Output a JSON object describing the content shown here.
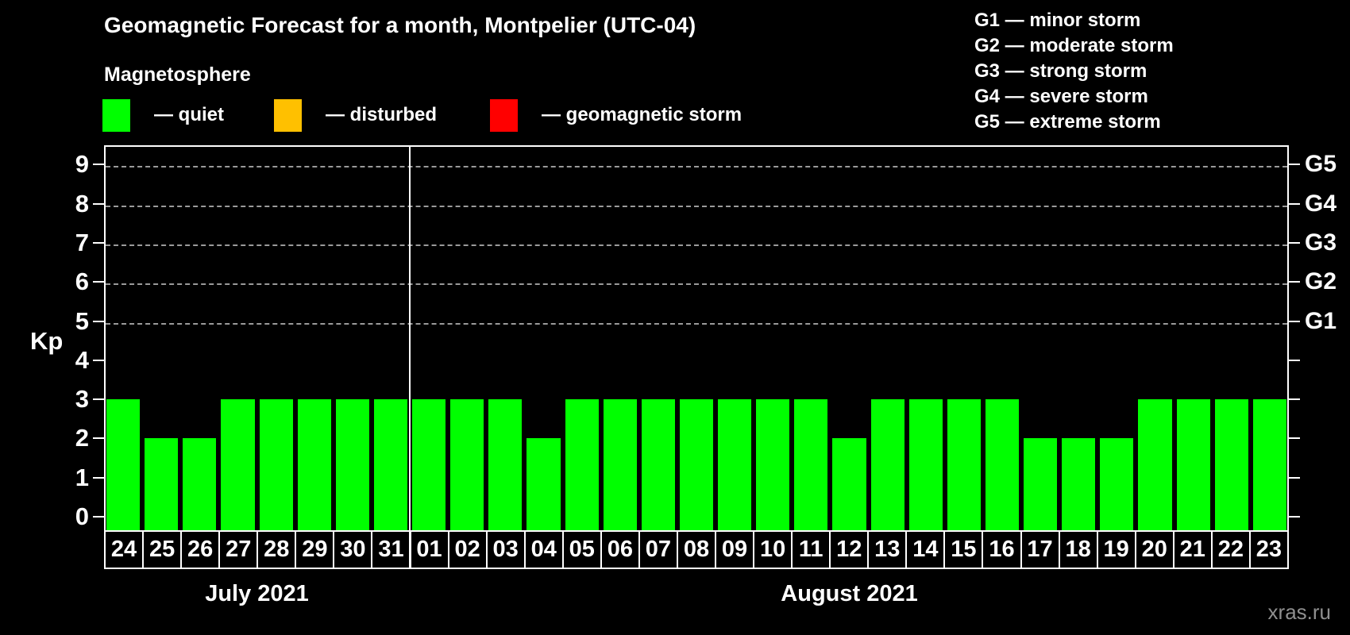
{
  "title": "Geomagnetic Forecast for a month, Montpelier (UTC-04)",
  "watermark": "xras.ru",
  "magnetosphere_legend": {
    "title": "Magnetosphere",
    "items": [
      {
        "name": "quiet",
        "label": "— quiet",
        "color": "#00ff00"
      },
      {
        "name": "disturbed",
        "label": "— disturbed",
        "color": "#ffc000"
      },
      {
        "name": "storm",
        "label": "— geomagnetic storm",
        "color": "#ff0000"
      }
    ]
  },
  "gscale_legend": [
    "G1 — minor storm",
    "G2 — moderate storm",
    "G3 — strong storm",
    "G4 — severe storm",
    "G5 — extreme storm"
  ],
  "chart_data": {
    "type": "bar",
    "ylabel": "Kp",
    "ylim": [
      0,
      9.8
    ],
    "yticks": [
      0,
      1,
      2,
      3,
      4,
      5,
      6,
      7,
      8,
      9
    ],
    "gridlines_at_kp": [
      5,
      6,
      7,
      8,
      9
    ],
    "grid_style": "dashed",
    "legend_position": "top",
    "right_axis": [
      {
        "label": "G1",
        "kp": 5
      },
      {
        "label": "G2",
        "kp": 6
      },
      {
        "label": "G3",
        "kp": 7
      },
      {
        "label": "G4",
        "kp": 8
      },
      {
        "label": "G5",
        "kp": 9
      }
    ],
    "status_colors": {
      "quiet": "#00ff00",
      "disturbed": "#ffc000",
      "storm": "#ff0000"
    },
    "months": [
      {
        "label": "July 2021",
        "days": [
          {
            "day": "24",
            "kp": 3,
            "status": "quiet"
          },
          {
            "day": "25",
            "kp": 2,
            "status": "quiet"
          },
          {
            "day": "26",
            "kp": 2,
            "status": "quiet"
          },
          {
            "day": "27",
            "kp": 3,
            "status": "quiet"
          },
          {
            "day": "28",
            "kp": 3,
            "status": "quiet"
          },
          {
            "day": "29",
            "kp": 3,
            "status": "quiet"
          },
          {
            "day": "30",
            "kp": 3,
            "status": "quiet"
          },
          {
            "day": "31",
            "kp": 3,
            "status": "quiet"
          }
        ]
      },
      {
        "label": "August 2021",
        "days": [
          {
            "day": "01",
            "kp": 3,
            "status": "quiet"
          },
          {
            "day": "02",
            "kp": 3,
            "status": "quiet"
          },
          {
            "day": "03",
            "kp": 3,
            "status": "quiet"
          },
          {
            "day": "04",
            "kp": 2,
            "status": "quiet"
          },
          {
            "day": "05",
            "kp": 3,
            "status": "quiet"
          },
          {
            "day": "06",
            "kp": 3,
            "status": "quiet"
          },
          {
            "day": "07",
            "kp": 3,
            "status": "quiet"
          },
          {
            "day": "08",
            "kp": 3,
            "status": "quiet"
          },
          {
            "day": "09",
            "kp": 3,
            "status": "quiet"
          },
          {
            "day": "10",
            "kp": 3,
            "status": "quiet"
          },
          {
            "day": "11",
            "kp": 3,
            "status": "quiet"
          },
          {
            "day": "12",
            "kp": 2,
            "status": "quiet"
          },
          {
            "day": "13",
            "kp": 3,
            "status": "quiet"
          },
          {
            "day": "14",
            "kp": 3,
            "status": "quiet"
          },
          {
            "day": "15",
            "kp": 3,
            "status": "quiet"
          },
          {
            "day": "16",
            "kp": 3,
            "status": "quiet"
          },
          {
            "day": "17",
            "kp": 2,
            "status": "quiet"
          },
          {
            "day": "18",
            "kp": 2,
            "status": "quiet"
          },
          {
            "day": "19",
            "kp": 2,
            "status": "quiet"
          },
          {
            "day": "20",
            "kp": 3,
            "status": "quiet"
          },
          {
            "day": "21",
            "kp": 3,
            "status": "quiet"
          },
          {
            "day": "22",
            "kp": 3,
            "status": "quiet"
          },
          {
            "day": "23",
            "kp": 3,
            "status": "quiet"
          }
        ]
      }
    ]
  }
}
